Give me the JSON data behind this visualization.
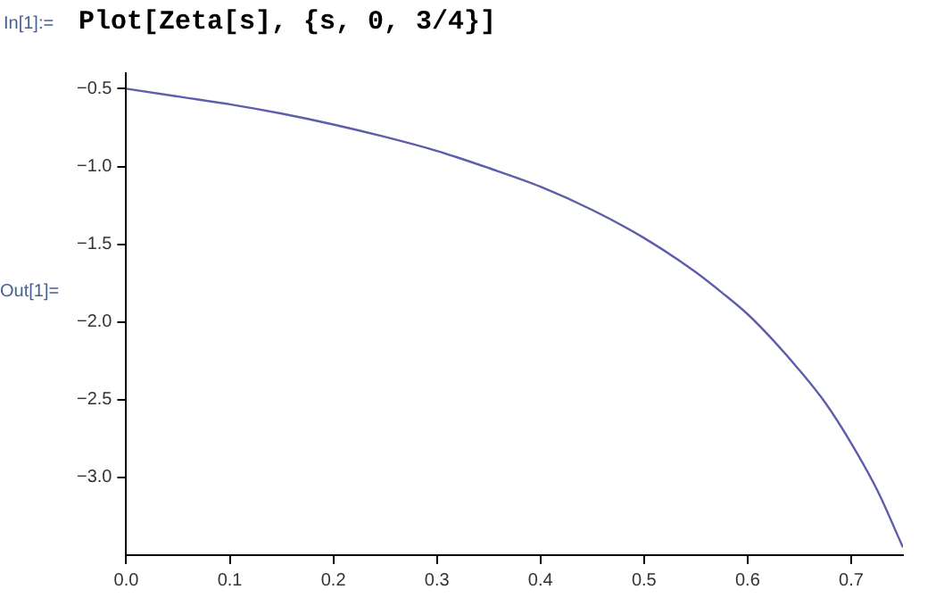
{
  "chart_data": {
    "type": "line",
    "annotations": [
      "In[1]:=",
      "Plot[Zeta[s], {s, 0, 3/4}]",
      "Out[1]="
    ],
    "x": [
      0,
      0.05,
      0.1,
      0.15,
      0.2,
      0.25,
      0.3,
      0.35,
      0.4,
      0.45,
      0.5,
      0.55,
      0.575,
      0.6,
      0.625,
      0.65,
      0.675,
      0.7,
      0.725,
      0.75
    ],
    "series": [
      {
        "color": "#5e5eaa",
        "values": [
          -0.5,
          -0.55,
          -0.6,
          -0.66,
          -0.73,
          -0.81,
          -0.9,
          -1.01,
          -1.13,
          -1.28,
          -1.46,
          -1.68,
          -1.81,
          -1.95,
          -2.12,
          -2.31,
          -2.52,
          -2.78,
          -3.08,
          -3.45
        ]
      }
    ],
    "xlim": [
      0,
      0.75
    ],
    "xticks": [
      {
        "value": 0,
        "label": "0.0"
      },
      0.1,
      0.2,
      0.3,
      0.4,
      0.5,
      0.6,
      0.7
    ],
    "ylim": [
      -3.5,
      -0.4
    ],
    "yticks": [
      {
        "value": -0.5,
        "label": "−0.5"
      },
      {
        "value": -1,
        "label": "−1.0"
      },
      {
        "value": -1.5,
        "label": "−1.5"
      },
      {
        "value": -2,
        "label": "−2.0"
      },
      {
        "value": -2.5,
        "label": "−2.5"
      },
      {
        "value": -3,
        "label": "−3.0"
      }
    ],
    "grid": false,
    "legend": false,
    "marker": "none",
    "line_style": "solid"
  }
}
